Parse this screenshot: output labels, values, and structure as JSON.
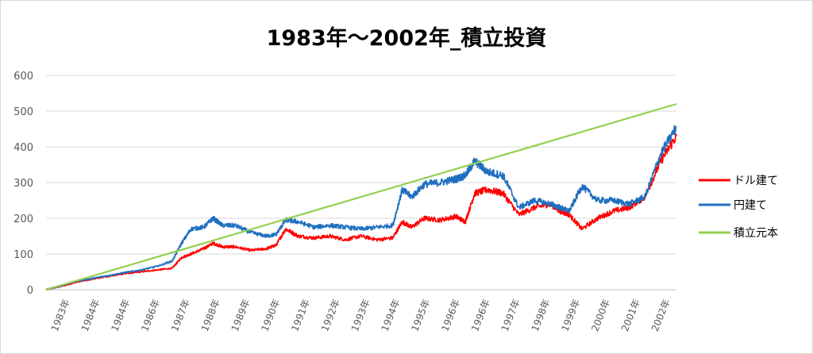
{
  "chart_data": {
    "type": "line",
    "title": "1983年～2002年_積立投資",
    "ylim": [
      0,
      600
    ],
    "yticks": [
      0,
      100,
      200,
      300,
      400,
      500,
      600
    ],
    "xlim": [
      1983.0,
      2003.0
    ],
    "x_tick_labels": [
      "1983年",
      "1984年",
      "1984年",
      "1986年",
      "1987年",
      "1988年",
      "1989年",
      "1990年",
      "1991年",
      "1992年",
      "1993年",
      "1994年",
      "1995年",
      "1996年",
      "1996年",
      "1997年",
      "1998年",
      "1999年",
      "2000年",
      "2001年",
      "2002年"
    ],
    "grid": true,
    "legend": "right",
    "series": [
      {
        "name": "ドル建て",
        "color": "#ff0000",
        "x": [
          1983.0,
          1983.5,
          1984.0,
          1984.5,
          1985.0,
          1985.5,
          1986.0,
          1986.5,
          1987.0,
          1987.3,
          1987.6,
          1988.0,
          1988.3,
          1988.6,
          1989.0,
          1989.5,
          1990.0,
          1990.3,
          1990.6,
          1991.0,
          1991.5,
          1992.0,
          1992.5,
          1993.0,
          1993.5,
          1994.0,
          1994.3,
          1994.6,
          1995.0,
          1995.5,
          1996.0,
          1996.3,
          1996.6,
          1997.0,
          1997.5,
          1998.0,
          1998.5,
          1999.0,
          1999.3,
          1999.6,
          2000.0,
          2000.5,
          2001.0,
          2001.5,
          2002.0,
          2002.5,
          2003.0
        ],
        "values": [
          0,
          10,
          22,
          30,
          38,
          45,
          50,
          55,
          60,
          90,
          100,
          115,
          130,
          120,
          120,
          110,
          115,
          125,
          170,
          150,
          145,
          150,
          140,
          150,
          140,
          145,
          190,
          175,
          200,
          195,
          205,
          190,
          270,
          280,
          270,
          210,
          230,
          240,
          220,
          210,
          170,
          200,
          220,
          230,
          260,
          360,
          430
        ]
      },
      {
        "name": "円建て",
        "color": "#1f6fbf",
        "x": [
          1983.0,
          1983.5,
          1984.0,
          1984.5,
          1985.0,
          1985.5,
          1986.0,
          1986.5,
          1987.0,
          1987.3,
          1987.6,
          1988.0,
          1988.3,
          1988.6,
          1989.0,
          1989.5,
          1990.0,
          1990.3,
          1990.6,
          1991.0,
          1991.5,
          1992.0,
          1992.5,
          1993.0,
          1993.5,
          1994.0,
          1994.3,
          1994.6,
          1995.0,
          1995.5,
          1996.0,
          1996.3,
          1996.6,
          1997.0,
          1997.5,
          1998.0,
          1998.5,
          1999.0,
          1999.3,
          1999.6,
          2000.0,
          2000.5,
          2001.0,
          2001.5,
          2002.0,
          2002.5,
          2003.0
        ],
        "values": [
          0,
          12,
          25,
          32,
          40,
          48,
          55,
          65,
          80,
          130,
          170,
          175,
          200,
          180,
          180,
          160,
          150,
          155,
          195,
          190,
          175,
          180,
          175,
          170,
          175,
          180,
          280,
          260,
          295,
          300,
          310,
          320,
          360,
          330,
          320,
          230,
          250,
          240,
          230,
          220,
          290,
          250,
          250,
          240,
          260,
          380,
          455
        ]
      },
      {
        "name": "積立元本",
        "color": "#92d050",
        "x": [
          1983.0,
          2003.0
        ],
        "values": [
          0,
          520
        ]
      }
    ]
  }
}
